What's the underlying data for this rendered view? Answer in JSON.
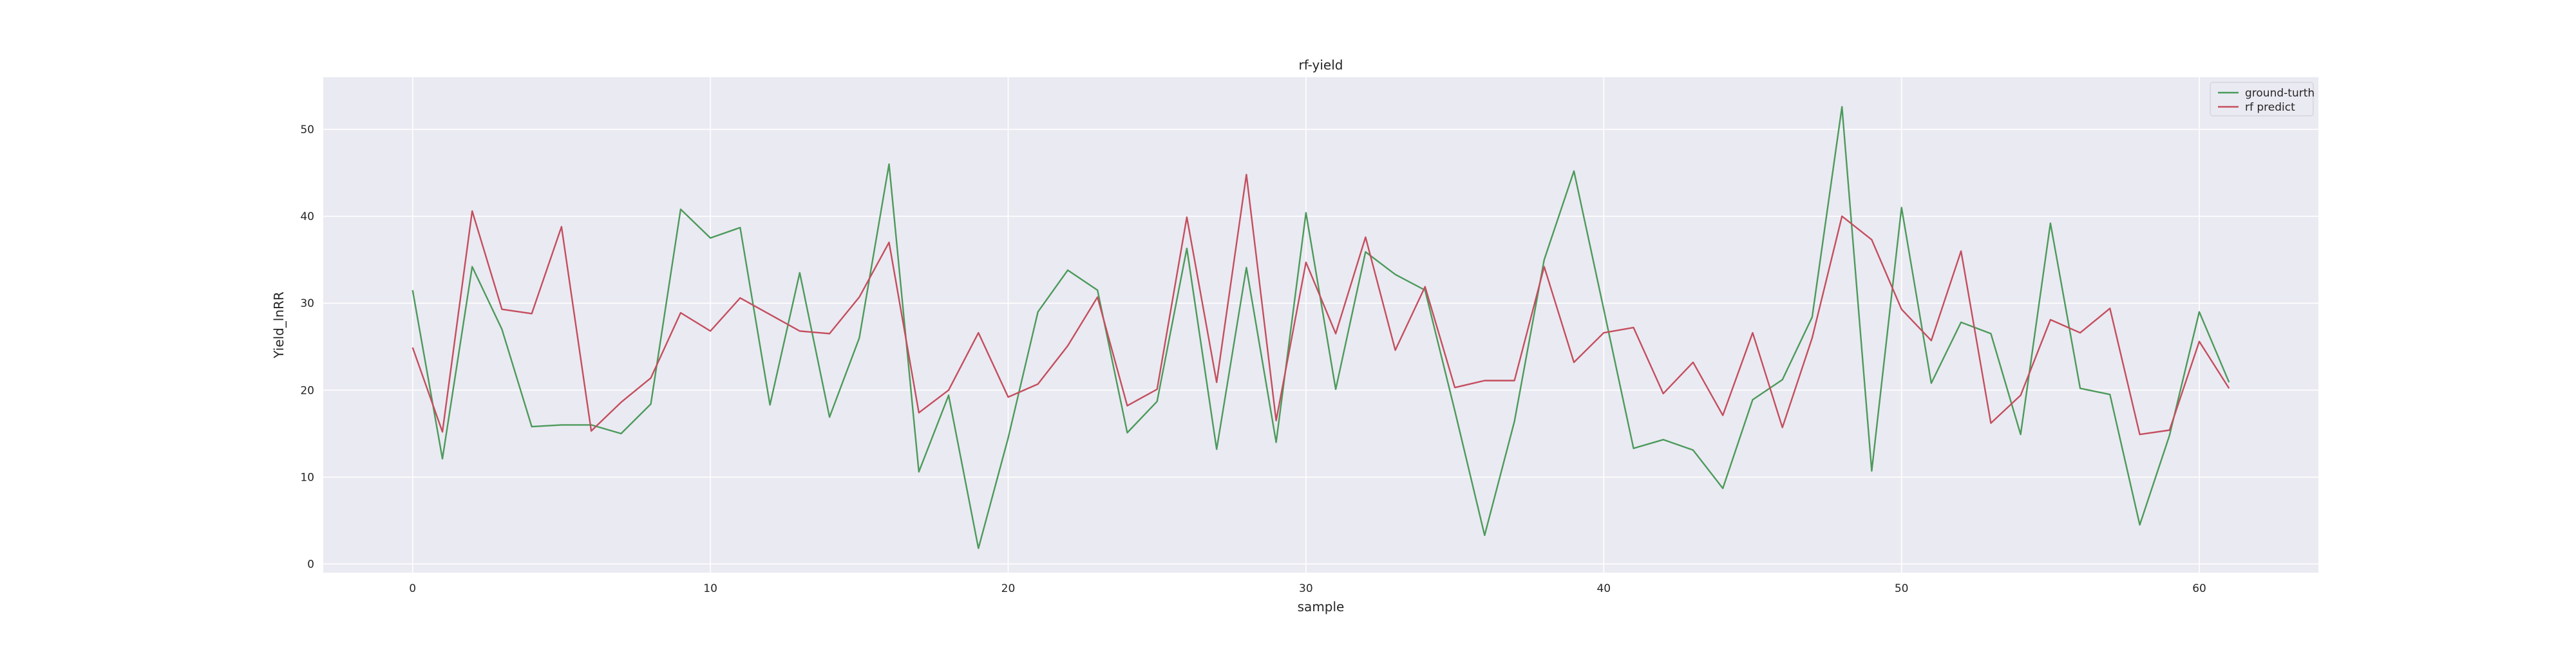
{
  "chart_data": {
    "type": "line",
    "title": "rf-yield",
    "xlabel": "sample",
    "ylabel": "Yield_lnRR",
    "xlim": [
      -3,
      64
    ],
    "ylim": [
      -1,
      56
    ],
    "xticks": [
      0,
      10,
      20,
      30,
      40,
      50,
      60
    ],
    "yticks": [
      0,
      10,
      20,
      30,
      40,
      50
    ],
    "grid": true,
    "legend_position": "top-right",
    "series": [
      {
        "name": "ground-turth",
        "color": "#4c9a5b",
        "x": [
          0,
          1,
          2,
          3,
          4,
          5,
          6,
          7,
          8,
          9,
          10,
          11,
          12,
          13,
          14,
          15,
          16,
          17,
          18,
          19,
          20,
          21,
          22,
          23,
          24,
          25,
          26,
          27,
          28,
          29,
          30,
          31,
          32,
          33,
          34,
          35,
          36,
          37,
          38,
          39,
          40,
          41,
          42,
          43,
          44,
          45,
          46,
          47,
          48,
          49,
          50,
          51,
          52,
          53,
          54,
          55,
          56,
          57,
          58,
          59,
          60,
          61
        ],
        "values": [
          31.5,
          12.1,
          34.2,
          27.0,
          15.8,
          16.0,
          16.0,
          15.0,
          18.4,
          40.8,
          37.5,
          38.7,
          18.3,
          33.5,
          16.9,
          26.0,
          46.0,
          10.6,
          19.4,
          1.8,
          14.5,
          29.0,
          33.8,
          31.5,
          15.1,
          18.7,
          36.3,
          13.2,
          34.1,
          14.0,
          40.4,
          20.1,
          35.9,
          33.3,
          31.5,
          17.6,
          3.3,
          16.4,
          35.0,
          45.2,
          29.3,
          13.3,
          14.3,
          13.1,
          8.7,
          18.9,
          21.2,
          28.4,
          52.6,
          10.7,
          41.0,
          20.8,
          27.8,
          26.5,
          14.9,
          39.2,
          20.2,
          19.5,
          4.5,
          14.8,
          29.0,
          20.9
        ]
      },
      {
        "name": "rf predict",
        "color": "#c44e5e",
        "x": [
          0,
          1,
          2,
          3,
          4,
          5,
          6,
          7,
          8,
          9,
          10,
          11,
          12,
          13,
          14,
          15,
          16,
          17,
          18,
          19,
          20,
          21,
          22,
          23,
          24,
          25,
          26,
          27,
          28,
          29,
          30,
          31,
          32,
          33,
          34,
          35,
          36,
          37,
          38,
          39,
          40,
          41,
          42,
          43,
          44,
          45,
          46,
          47,
          48,
          49,
          50,
          51,
          52,
          53,
          54,
          55,
          56,
          57,
          58,
          59,
          60,
          61
        ],
        "values": [
          24.9,
          15.2,
          40.6,
          29.3,
          28.8,
          38.8,
          15.3,
          18.6,
          21.4,
          28.9,
          26.8,
          30.6,
          28.7,
          26.8,
          26.5,
          30.7,
          37.0,
          17.4,
          20.0,
          26.6,
          19.2,
          20.7,
          25.1,
          30.7,
          18.2,
          20.1,
          39.9,
          20.9,
          44.8,
          16.5,
          34.7,
          26.5,
          37.6,
          24.6,
          31.9,
          20.3,
          21.1,
          21.1,
          34.2,
          23.2,
          26.6,
          27.2,
          19.6,
          23.2,
          17.1,
          26.6,
          15.7,
          26.0,
          40.0,
          37.3,
          29.3,
          25.7,
          36.0,
          16.2,
          19.4,
          28.1,
          26.6,
          29.4,
          14.9,
          15.4,
          25.6,
          20.2
        ]
      }
    ]
  }
}
